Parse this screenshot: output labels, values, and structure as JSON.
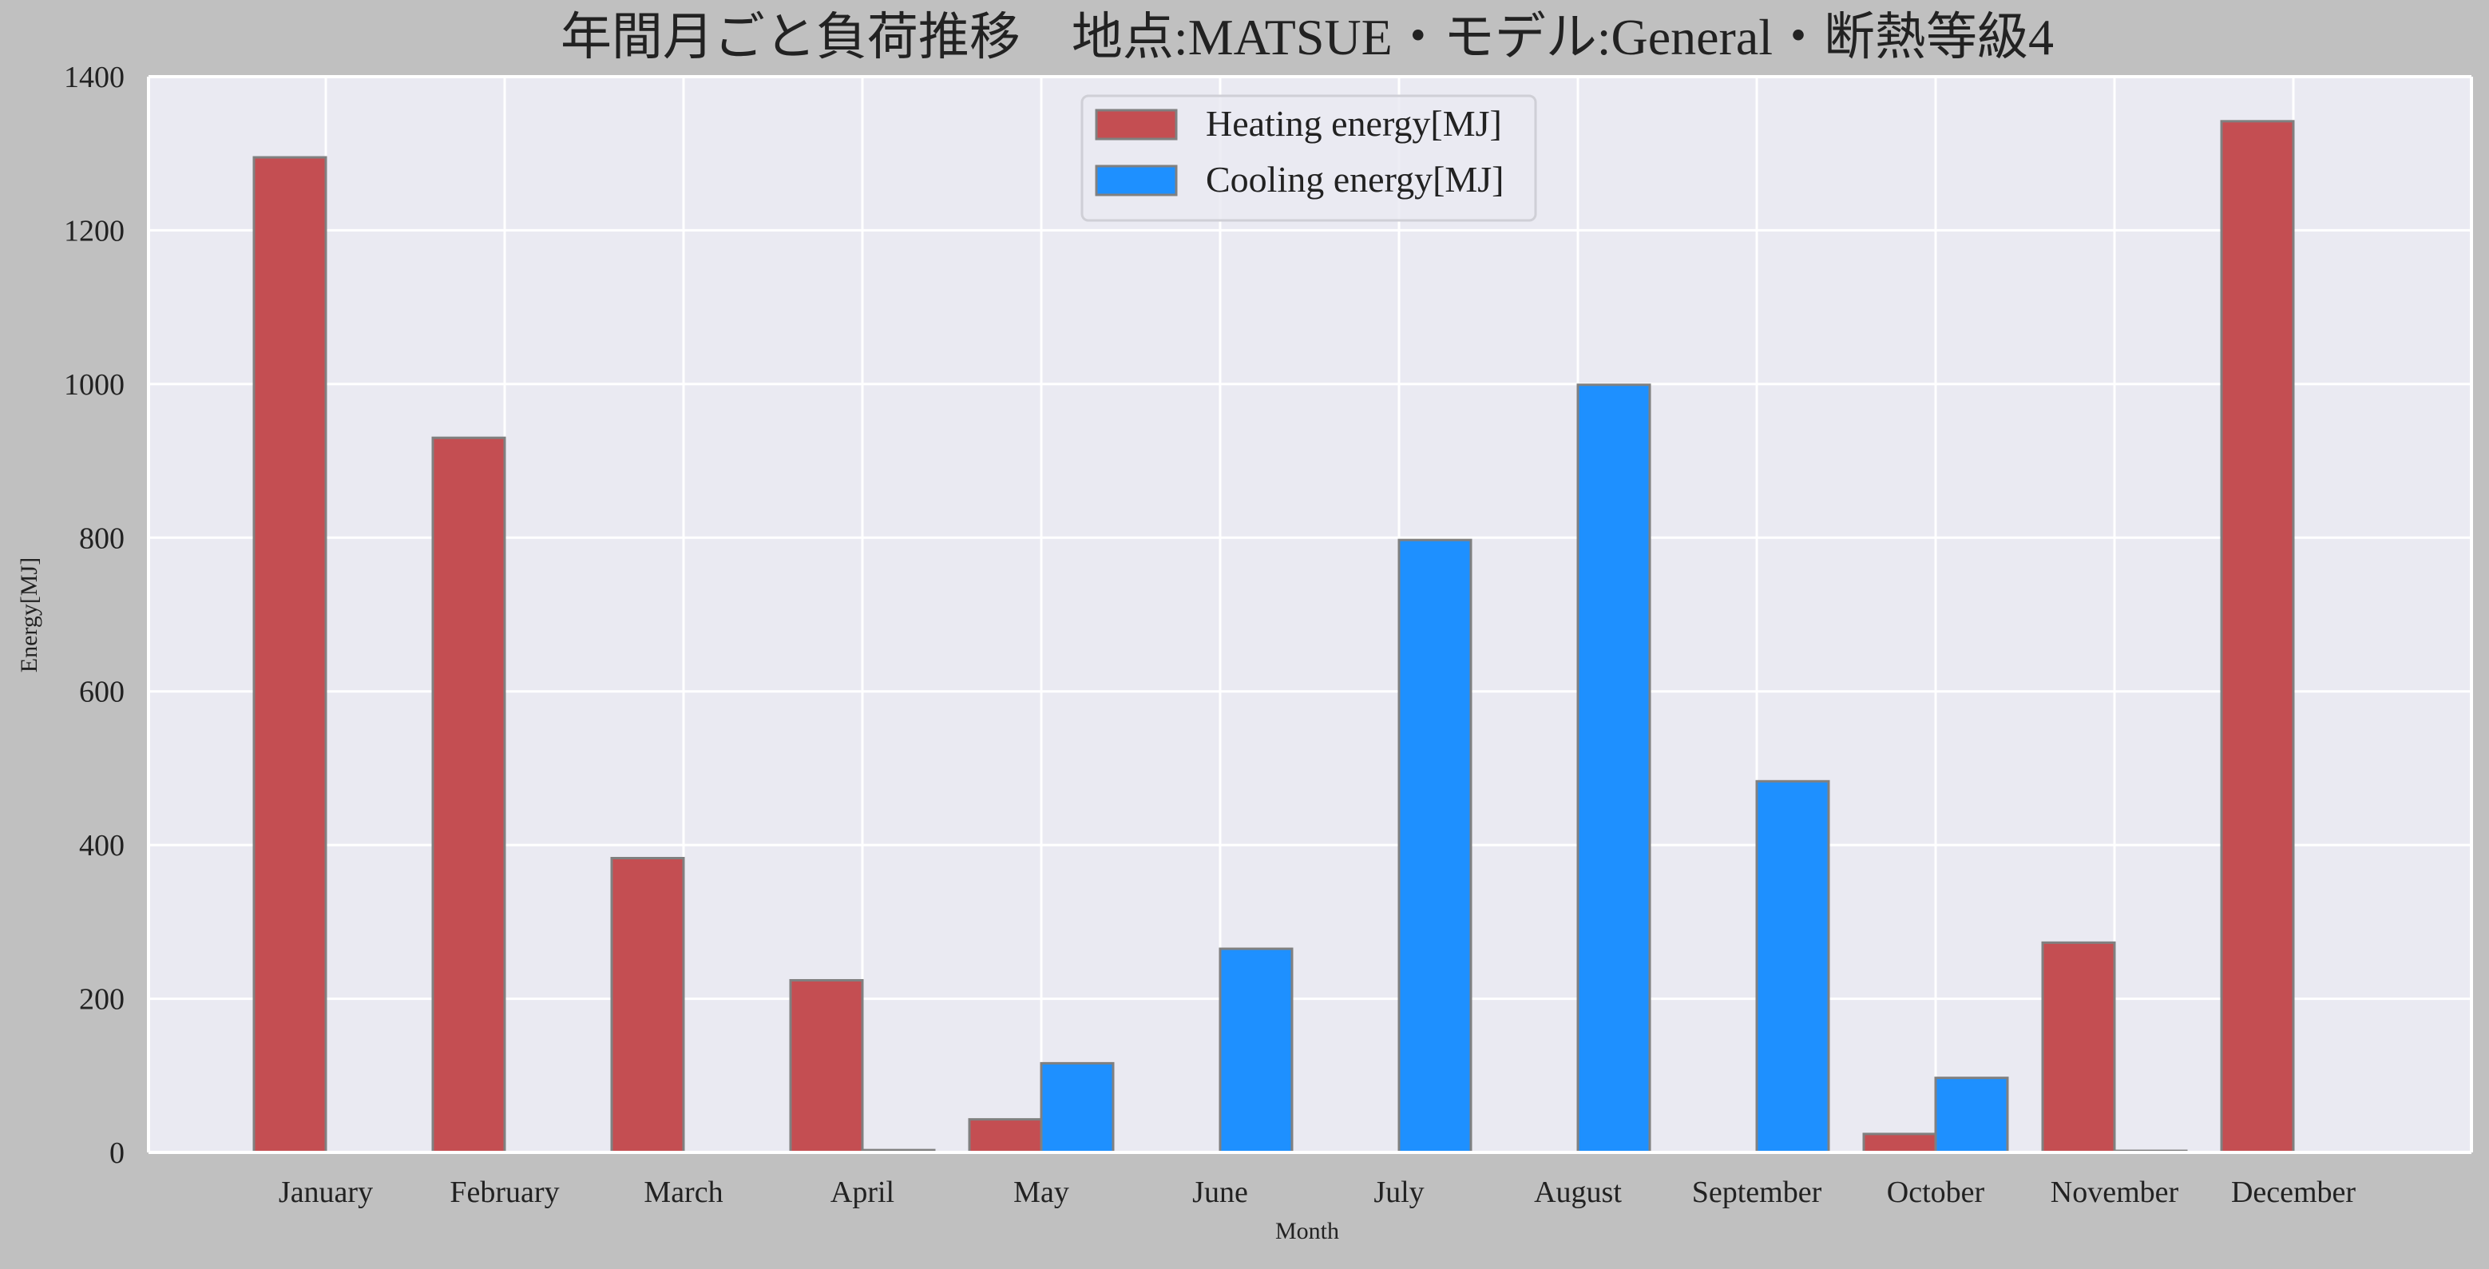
{
  "chart_data": {
    "type": "bar",
    "title": "年間月ごと負荷推移　地点:MATSUE・モデル:General・断熱等級4",
    "xlabel": "Month",
    "ylabel": "Energy[MJ]",
    "ylim": [
      0,
      1400
    ],
    "yticks": [
      0,
      200,
      400,
      600,
      800,
      1000,
      1200,
      1400
    ],
    "grid": true,
    "legend_position": "top-center",
    "categories": [
      "January",
      "February",
      "March",
      "April",
      "May",
      "June",
      "July",
      "August",
      "September",
      "October",
      "November",
      "December"
    ],
    "series": [
      {
        "name": "Heating energy[MJ]",
        "color": "#c44e52",
        "values": [
          1295,
          930,
          383,
          224,
          43,
          0,
          0,
          0,
          0,
          24,
          273,
          1342
        ]
      },
      {
        "name": "Cooling energy[MJ]",
        "color": "#1e90ff",
        "values": [
          0,
          0,
          0,
          3,
          116,
          265,
          797,
          999,
          483,
          97,
          2,
          0
        ]
      }
    ],
    "colors": {
      "figure_bg": "#c0c0c0",
      "plot_bg": "#eaeaf2",
      "grid": "#ffffff",
      "bar_edge": "#808080",
      "text": "#222222"
    }
  }
}
